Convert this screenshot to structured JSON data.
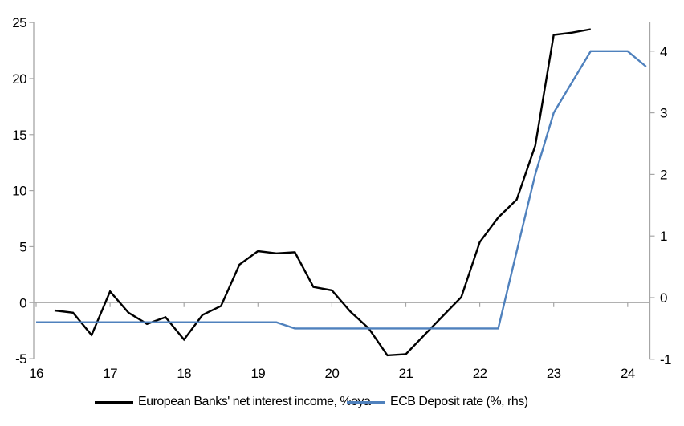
{
  "chart_data": {
    "type": "line",
    "title": "",
    "x_axis": {
      "tick_values": [
        16,
        17,
        18,
        19,
        20,
        21,
        22,
        23,
        24
      ],
      "tick_labels": [
        "16",
        "17",
        "18",
        "19",
        "20",
        "21",
        "22",
        "23",
        "24"
      ],
      "range": [
        16,
        24.3
      ]
    },
    "left_axis": {
      "tick_values": [
        25,
        20,
        15,
        10,
        5,
        0,
        -5
      ],
      "tick_labels": [
        "25",
        "20",
        "15",
        "10",
        "5",
        "0",
        "-5"
      ],
      "range": [
        -5,
        25
      ]
    },
    "right_axis": {
      "tick_values": [
        4,
        3,
        2,
        1,
        0,
        -1
      ],
      "tick_labels": [
        "4",
        "3",
        "2",
        "1",
        "0",
        "-1"
      ],
      "range": [
        -1,
        4.45
      ]
    },
    "grid": "zero-line-only",
    "legend_position": "bottom",
    "series": [
      {
        "name": "European Banks' net interest income, %oya",
        "axis": "left",
        "color": "#000000",
        "x": [
          16.25,
          16.5,
          16.75,
          17,
          17.25,
          17.5,
          17.75,
          18,
          18.25,
          18.5,
          18.75,
          19,
          19.25,
          19.5,
          19.75,
          20,
          20.25,
          20.5,
          20.75,
          21,
          21.25,
          21.5,
          21.75,
          22,
          22.25,
          22.5,
          22.75,
          23,
          23.25,
          23.5
        ],
        "values": [
          -0.7,
          -0.9,
          -2.9,
          1.0,
          -0.9,
          -1.9,
          -1.3,
          -3.3,
          -1.1,
          -0.3,
          3.4,
          4.6,
          4.4,
          4.5,
          1.4,
          1.1,
          -0.8,
          -2.3,
          -4.7,
          -4.6,
          -2.9,
          -1.2,
          0.5,
          5.4,
          7.6,
          9.2,
          14.0,
          23.9,
          24.1,
          24.4
        ]
      },
      {
        "name": "ECB Deposit rate (%, rhs)",
        "axis": "right",
        "color": "#4f81bd",
        "x": [
          16,
          16.25,
          16.5,
          16.75,
          17,
          17.25,
          17.5,
          17.75,
          18,
          18.25,
          18.5,
          18.75,
          19,
          19.25,
          19.5,
          19.75,
          20,
          20.25,
          20.5,
          20.75,
          21,
          21.25,
          21.5,
          21.75,
          22,
          22.25,
          22.5,
          22.75,
          23,
          23.25,
          23.5,
          23.75,
          24,
          24.25
        ],
        "values": [
          -0.4,
          -0.4,
          -0.4,
          -0.4,
          -0.4,
          -0.4,
          -0.4,
          -0.4,
          -0.4,
          -0.4,
          -0.4,
          -0.4,
          -0.4,
          -0.4,
          -0.5,
          -0.5,
          -0.5,
          -0.5,
          -0.5,
          -0.5,
          -0.5,
          -0.5,
          -0.5,
          -0.5,
          -0.5,
          -0.5,
          0.75,
          2.0,
          3.0,
          3.5,
          4.0,
          4.0,
          4.0,
          3.75
        ]
      }
    ]
  },
  "colors": {
    "axis": "#a6a6a6",
    "text": "#000000",
    "background": "#ffffff"
  }
}
